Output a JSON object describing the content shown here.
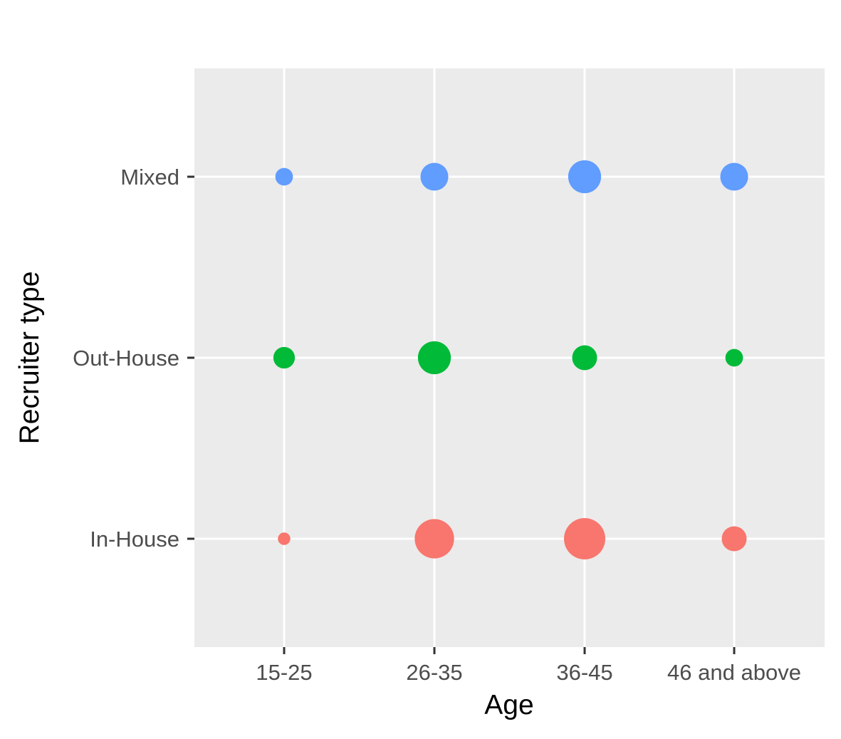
{
  "chart_data": {
    "type": "scatter",
    "title": "",
    "xlabel": "Age",
    "ylabel": "Recruiter type",
    "x_categories": [
      "15-25",
      "26-35",
      "36-45",
      "46 and above"
    ],
    "y_categories": [
      "In-House",
      "Out-House",
      "Mixed"
    ],
    "grid": true,
    "legend": "none",
    "series": [
      {
        "category": "In-House",
        "color": "#F8766D",
        "sizes": [
          1,
          10,
          11,
          4
        ]
      },
      {
        "category": "Out-House",
        "color": "#00BA38",
        "sizes": [
          3,
          7,
          4,
          2
        ]
      },
      {
        "category": "Mixed",
        "color": "#619CFF",
        "sizes": [
          2,
          5,
          7,
          5
        ]
      }
    ]
  }
}
